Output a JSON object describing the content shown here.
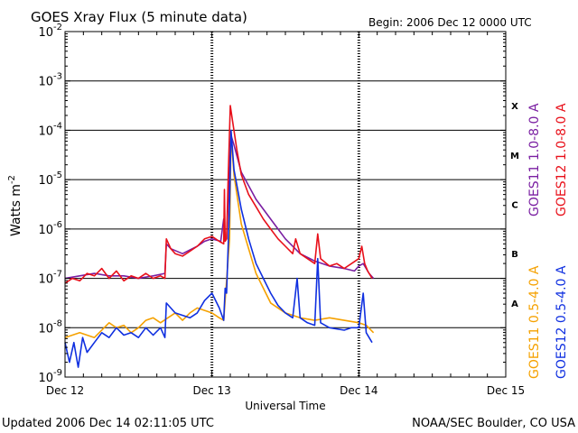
{
  "chart_data": {
    "type": "line",
    "title": "GOES Xray Flux (5 minute data)",
    "begin": "Begin:  2006 Dec 12 0000 UTC",
    "xlabel": "Universal Time",
    "ylabel": "Watts m",
    "ylabel_sup": "-2",
    "y_scale": "log",
    "ylim": [
      1e-09,
      0.01
    ],
    "xlim_days": [
      0,
      3
    ],
    "x_ticks": [
      {
        "day": 0,
        "label": "Dec 12"
      },
      {
        "day": 1,
        "label": "Dec 13"
      },
      {
        "day": 2,
        "label": "Dec 14"
      },
      {
        "day": 3,
        "label": "Dec 15"
      }
    ],
    "y_ticks": [
      {
        "exp": -2,
        "base": "10",
        "sup": "-2"
      },
      {
        "exp": -3,
        "base": "10",
        "sup": "-3"
      },
      {
        "exp": -4,
        "base": "10",
        "sup": "-4"
      },
      {
        "exp": -5,
        "base": "10",
        "sup": "-5"
      },
      {
        "exp": -6,
        "base": "10",
        "sup": "-6"
      },
      {
        "exp": -7,
        "base": "10",
        "sup": "-7"
      },
      {
        "exp": -8,
        "base": "10",
        "sup": "-8"
      },
      {
        "exp": -9,
        "base": "10",
        "sup": "-9"
      }
    ],
    "flare_classes": [
      {
        "label": "X",
        "exp": -3.5
      },
      {
        "label": "M",
        "exp": -4.5
      },
      {
        "label": "C",
        "exp": -5.5
      },
      {
        "label": "B",
        "exp": -6.5
      },
      {
        "label": "A",
        "exp": -7.5
      }
    ],
    "legend": [
      {
        "text": "GOES11 1.0-8.0 A",
        "color": "#7a1fa2",
        "group": "long"
      },
      {
        "text": "GOES12 1.0-8.0 A",
        "color": "#e8101a",
        "group": "long"
      },
      {
        "text": "GOES11 0.5-4.0 A",
        "color": "#f5a100",
        "group": "short"
      },
      {
        "text": "GOES12 0.5-4.0 A",
        "color": "#1030e0",
        "group": "short"
      }
    ],
    "series": [
      {
        "name": "GOES11 1.0-8.0 A",
        "color": "#7a1fa2",
        "points": [
          [
            0.0,
            -7.0
          ],
          [
            0.1,
            -6.95
          ],
          [
            0.2,
            -6.9
          ],
          [
            0.3,
            -6.95
          ],
          [
            0.4,
            -6.95
          ],
          [
            0.5,
            -7.0
          ],
          [
            0.6,
            -6.95
          ],
          [
            0.68,
            -6.9
          ],
          [
            0.69,
            -6.3
          ],
          [
            0.72,
            -6.4
          ],
          [
            0.8,
            -6.5
          ],
          [
            0.9,
            -6.35
          ],
          [
            0.95,
            -6.25
          ],
          [
            1.0,
            -6.2
          ],
          [
            1.06,
            -6.25
          ],
          [
            1.08,
            -5.8
          ],
          [
            1.09,
            -6.2
          ],
          [
            1.1,
            -6.2
          ],
          [
            1.12,
            -4.8
          ],
          [
            1.13,
            -4.1
          ],
          [
            1.15,
            -4.3
          ],
          [
            1.2,
            -4.85
          ],
          [
            1.3,
            -5.4
          ],
          [
            1.4,
            -5.8
          ],
          [
            1.5,
            -6.2
          ],
          [
            1.6,
            -6.5
          ],
          [
            1.7,
            -6.65
          ],
          [
            1.8,
            -6.75
          ],
          [
            1.9,
            -6.8
          ],
          [
            1.97,
            -6.85
          ],
          [
            2.0,
            -6.75
          ],
          [
            2.03,
            -6.7
          ],
          [
            2.07,
            -6.9
          ],
          [
            2.1,
            -7.0
          ]
        ]
      },
      {
        "name": "GOES12 1.0-8.0 A",
        "color": "#e8101a",
        "points": [
          [
            0.0,
            -7.1
          ],
          [
            0.05,
            -7.0
          ],
          [
            0.1,
            -7.05
          ],
          [
            0.15,
            -6.9
          ],
          [
            0.2,
            -6.95
          ],
          [
            0.25,
            -6.8
          ],
          [
            0.3,
            -7.0
          ],
          [
            0.35,
            -6.85
          ],
          [
            0.4,
            -7.05
          ],
          [
            0.45,
            -6.95
          ],
          [
            0.5,
            -7.0
          ],
          [
            0.55,
            -6.9
          ],
          [
            0.6,
            -7.0
          ],
          [
            0.65,
            -6.95
          ],
          [
            0.68,
            -7.0
          ],
          [
            0.69,
            -6.2
          ],
          [
            0.72,
            -6.4
          ],
          [
            0.75,
            -6.5
          ],
          [
            0.8,
            -6.55
          ],
          [
            0.85,
            -6.45
          ],
          [
            0.9,
            -6.35
          ],
          [
            0.95,
            -6.2
          ],
          [
            1.0,
            -6.15
          ],
          [
            1.05,
            -6.25
          ],
          [
            1.08,
            -6.3
          ],
          [
            1.085,
            -5.2
          ],
          [
            1.09,
            -6.25
          ],
          [
            1.1,
            -6.2
          ],
          [
            1.11,
            -5.0
          ],
          [
            1.125,
            -3.5
          ],
          [
            1.14,
            -3.8
          ],
          [
            1.17,
            -4.4
          ],
          [
            1.2,
            -4.9
          ],
          [
            1.25,
            -5.3
          ],
          [
            1.3,
            -5.55
          ],
          [
            1.35,
            -5.8
          ],
          [
            1.4,
            -6.0
          ],
          [
            1.45,
            -6.2
          ],
          [
            1.5,
            -6.35
          ],
          [
            1.55,
            -6.5
          ],
          [
            1.57,
            -6.2
          ],
          [
            1.6,
            -6.5
          ],
          [
            1.65,
            -6.6
          ],
          [
            1.7,
            -6.7
          ],
          [
            1.72,
            -6.1
          ],
          [
            1.74,
            -6.6
          ],
          [
            1.8,
            -6.75
          ],
          [
            1.85,
            -6.7
          ],
          [
            1.9,
            -6.8
          ],
          [
            1.95,
            -6.7
          ],
          [
            2.0,
            -6.6
          ],
          [
            2.02,
            -6.35
          ],
          [
            2.04,
            -6.7
          ],
          [
            2.06,
            -6.85
          ],
          [
            2.09,
            -7.0
          ]
        ]
      },
      {
        "name": "GOES11 0.5-4.0 A",
        "color": "#f5a100",
        "points": [
          [
            0.0,
            -8.2
          ],
          [
            0.1,
            -8.1
          ],
          [
            0.2,
            -8.2
          ],
          [
            0.3,
            -7.9
          ],
          [
            0.35,
            -8.0
          ],
          [
            0.4,
            -7.95
          ],
          [
            0.45,
            -8.1
          ],
          [
            0.5,
            -8.0
          ],
          [
            0.55,
            -7.85
          ],
          [
            0.6,
            -7.8
          ],
          [
            0.65,
            -7.9
          ],
          [
            0.7,
            -7.8
          ],
          [
            0.75,
            -7.7
          ],
          [
            0.8,
            -7.85
          ],
          [
            0.85,
            -7.7
          ],
          [
            0.9,
            -7.6
          ],
          [
            1.0,
            -7.7
          ],
          [
            1.05,
            -7.8
          ],
          [
            1.08,
            -7.85
          ],
          [
            1.12,
            -6.2
          ],
          [
            1.13,
            -4.1
          ],
          [
            1.15,
            -4.9
          ],
          [
            1.2,
            -5.9
          ],
          [
            1.25,
            -6.4
          ],
          [
            1.3,
            -6.9
          ],
          [
            1.35,
            -7.2
          ],
          [
            1.4,
            -7.5
          ],
          [
            1.5,
            -7.7
          ],
          [
            1.6,
            -7.8
          ],
          [
            1.7,
            -7.85
          ],
          [
            1.8,
            -7.8
          ],
          [
            1.9,
            -7.85
          ],
          [
            2.0,
            -7.9
          ],
          [
            2.05,
            -7.95
          ],
          [
            2.1,
            -8.1
          ]
        ]
      },
      {
        "name": "GOES12 0.5-4.0 A",
        "color": "#1030e0",
        "points": [
          [
            0.0,
            -8.3
          ],
          [
            0.03,
            -8.7
          ],
          [
            0.06,
            -8.3
          ],
          [
            0.09,
            -8.8
          ],
          [
            0.12,
            -8.2
          ],
          [
            0.15,
            -8.5
          ],
          [
            0.2,
            -8.3
          ],
          [
            0.25,
            -8.1
          ],
          [
            0.3,
            -8.2
          ],
          [
            0.35,
            -8.0
          ],
          [
            0.4,
            -8.15
          ],
          [
            0.45,
            -8.1
          ],
          [
            0.5,
            -8.2
          ],
          [
            0.55,
            -8.0
          ],
          [
            0.6,
            -8.15
          ],
          [
            0.65,
            -8.0
          ],
          [
            0.68,
            -8.2
          ],
          [
            0.69,
            -7.5
          ],
          [
            0.75,
            -7.7
          ],
          [
            0.85,
            -7.8
          ],
          [
            0.9,
            -7.7
          ],
          [
            0.95,
            -7.45
          ],
          [
            1.0,
            -7.3
          ],
          [
            1.05,
            -7.6
          ],
          [
            1.08,
            -7.85
          ],
          [
            1.09,
            -7.2
          ],
          [
            1.1,
            -7.3
          ],
          [
            1.12,
            -5.5
          ],
          [
            1.13,
            -4.0
          ],
          [
            1.15,
            -4.8
          ],
          [
            1.2,
            -5.6
          ],
          [
            1.25,
            -6.2
          ],
          [
            1.3,
            -6.7
          ],
          [
            1.35,
            -7.0
          ],
          [
            1.4,
            -7.3
          ],
          [
            1.45,
            -7.55
          ],
          [
            1.5,
            -7.7
          ],
          [
            1.55,
            -7.8
          ],
          [
            1.58,
            -7.0
          ],
          [
            1.6,
            -7.8
          ],
          [
            1.65,
            -7.9
          ],
          [
            1.7,
            -7.95
          ],
          [
            1.72,
            -6.6
          ],
          [
            1.74,
            -7.9
          ],
          [
            1.8,
            -8.0
          ],
          [
            1.9,
            -8.05
          ],
          [
            1.95,
            -8.0
          ],
          [
            2.0,
            -8.0
          ],
          [
            2.03,
            -7.3
          ],
          [
            2.05,
            -8.1
          ],
          [
            2.09,
            -8.3
          ]
        ]
      }
    ]
  },
  "footer": {
    "updated": "Updated 2006 Dec 14 02:11:05 UTC",
    "source": "NOAA/SEC Boulder, CO USA"
  }
}
